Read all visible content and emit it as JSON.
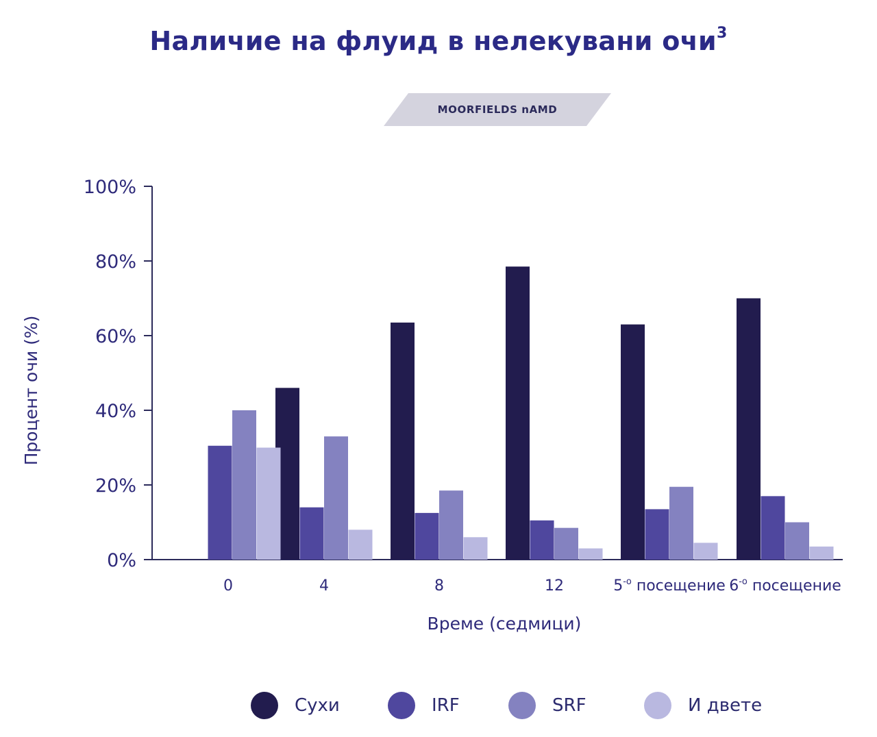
{
  "title": "Наличие на флуид в нелекувани очи",
  "title_superscript": "3",
  "badge": "MOORFIELDS nAMD",
  "colors": {
    "axis": "#2b2a5a",
    "text": "#2e2a7a",
    "badge_bg": "#d4d3de"
  },
  "chart_data": {
    "type": "bar",
    "categories": [
      "0",
      "4",
      "8",
      "12",
      "5-о посещение",
      "6-о посещение"
    ],
    "category_parts": [
      {
        "pre": "0",
        "sup": "",
        "post": ""
      },
      {
        "pre": "4",
        "sup": "",
        "post": ""
      },
      {
        "pre": "8",
        "sup": "",
        "post": ""
      },
      {
        "pre": "12",
        "sup": "",
        "post": ""
      },
      {
        "pre": "5",
        "sup": "-о",
        "post": " посещение"
      },
      {
        "pre": "6",
        "sup": "-о",
        "post": " посещение"
      }
    ],
    "series": [
      {
        "name": "Сухи",
        "color": "#221c4e",
        "values": [
          0,
          46,
          63.5,
          78.5,
          63,
          70
        ]
      },
      {
        "name": "IRF",
        "color": "#4f479e",
        "values": [
          30.5,
          14,
          12.5,
          10.5,
          13.5,
          17
        ]
      },
      {
        "name": "SRF",
        "color": "#8482c0",
        "values": [
          40,
          33,
          18.5,
          8.5,
          19.5,
          10
        ]
      },
      {
        "name": "И двете",
        "color": "#b9b8e0",
        "values": [
          30,
          8,
          6,
          3,
          4.5,
          3.5
        ]
      }
    ],
    "ylabel": "Процент очи (%)",
    "xlabel": "Време (седмици)",
    "ylim": [
      0,
      100
    ],
    "yticks": [
      "0%",
      "20%",
      "40%",
      "60%",
      "80%",
      "100%"
    ],
    "ytick_values": [
      0,
      20,
      40,
      60,
      80,
      100
    ],
    "grid": false,
    "legend_position": "bottom"
  }
}
